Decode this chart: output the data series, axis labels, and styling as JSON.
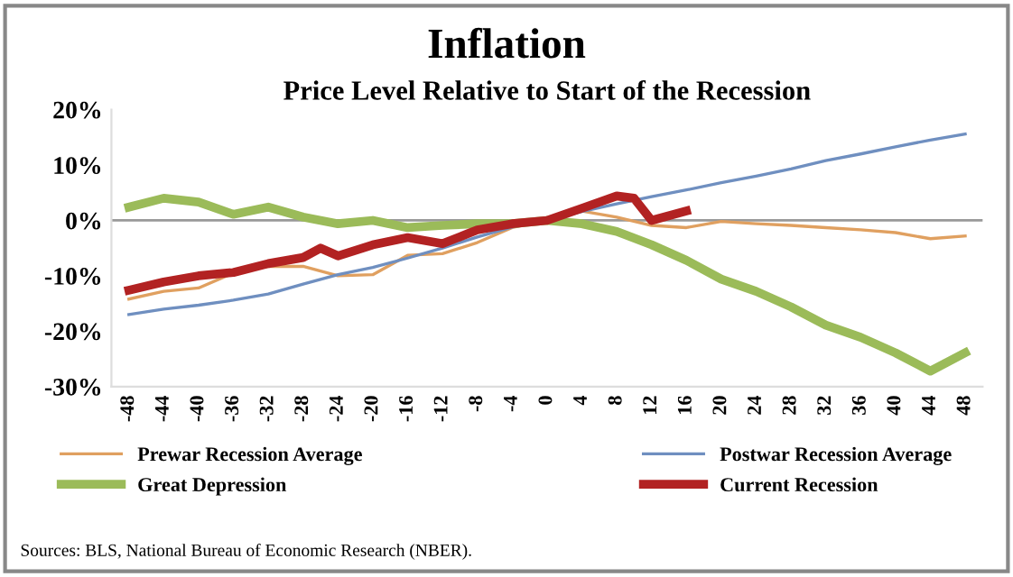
{
  "chart_data": {
    "type": "line",
    "title": "Inflation",
    "subtitle": "Price Level Relative to Start of the Recession",
    "x": [
      -48,
      -44,
      -40,
      -36,
      -32,
      -28,
      -24,
      -20,
      -16,
      -12,
      -8,
      -4,
      0,
      4,
      8,
      12,
      16,
      20,
      24,
      28,
      32,
      36,
      40,
      44,
      48
    ],
    "xlim": [
      -50,
      50
    ],
    "xticks": [
      -48,
      -44,
      -40,
      -36,
      -32,
      -28,
      -24,
      -20,
      -16,
      -12,
      -8,
      -4,
      0,
      4,
      8,
      12,
      16,
      20,
      24,
      28,
      32,
      36,
      40,
      44,
      48
    ],
    "ylim": [
      -30,
      20
    ],
    "yticks": [
      {
        "value": -30,
        "label": "-30%"
      },
      {
        "value": -20,
        "label": "-20%"
      },
      {
        "value": -10,
        "label": "-10%"
      },
      {
        "value": 0,
        "label": "0%"
      },
      {
        "value": 10,
        "label": "10%"
      },
      {
        "value": 20,
        "label": "20%"
      }
    ],
    "series": [
      {
        "name": "Prewar Recession Average",
        "color": "#e0a060",
        "values": [
          -14.2,
          -12.8,
          -12.2,
          -9.5,
          -8.3,
          -8.3,
          -10,
          -9.8,
          -6.3,
          -6,
          -4,
          -1.3,
          0,
          1.7,
          0.6,
          -0.9,
          -1.3,
          -0.2,
          -0.6,
          -0.9,
          -1.3,
          -1.7,
          -2.2,
          -3.3,
          -2.8
        ]
      },
      {
        "name": "Postwar Recession Average",
        "color": "#6f8fc0",
        "values": [
          -17,
          -16,
          -15.3,
          -14.4,
          -13.3,
          -11.5,
          -9.8,
          -8.5,
          -6.8,
          -5,
          -3,
          -1.2,
          0,
          1.6,
          3,
          4.3,
          5.5,
          6.8,
          8,
          9.3,
          10.8,
          12,
          13.3,
          14.5,
          15.6
        ]
      },
      {
        "name": "Great Depression",
        "color": "#9bbb59",
        "values": [
          2.4,
          4,
          3.3,
          1.1,
          2.4,
          0.6,
          -0.6,
          0,
          -1.3,
          -0.9,
          -0.6,
          -0.6,
          0,
          -0.6,
          -2,
          -4.4,
          -7.2,
          -10.6,
          -12.8,
          -15.6,
          -18.9,
          -21.1,
          -23.9,
          -27.2,
          -23.9
        ]
      },
      {
        "name": "Current Recession",
        "color": "#b22222",
        "x": [
          -48,
          -44,
          -40,
          -36,
          -32,
          -28,
          -26,
          -24,
          -20,
          -16,
          -12,
          -8,
          -4,
          0,
          4,
          8,
          10,
          12,
          16
        ],
        "values": [
          -12.6,
          -11.1,
          -10,
          -9.4,
          -7.8,
          -6.7,
          -5,
          -6.4,
          -4.4,
          -3.1,
          -4.2,
          -1.7,
          -0.6,
          0,
          2.2,
          4.4,
          4,
          0,
          1.7
        ]
      }
    ],
    "ref_lines": [
      {
        "axis": "y",
        "value": 0,
        "color": "#999999"
      }
    ],
    "grid": false,
    "legend": "bottom",
    "marker": "none",
    "line_style": "solid",
    "annotations": [
      "Sources: BLS, National Bureau of Economic Research (NBER)."
    ]
  }
}
